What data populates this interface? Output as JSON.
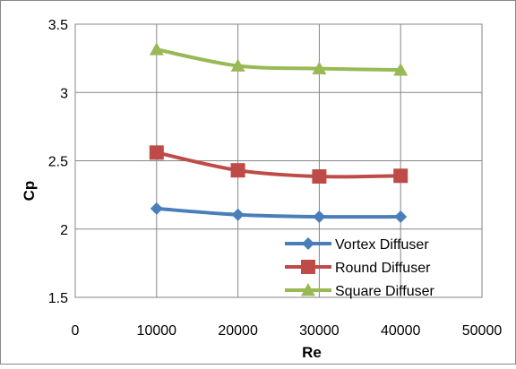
{
  "chart_data": {
    "type": "line",
    "xlabel": "Re",
    "ylabel": "Cp",
    "xlim": [
      0,
      50000
    ],
    "ylim": [
      1.5,
      3.5
    ],
    "x_ticks": [
      0,
      10000,
      20000,
      30000,
      40000,
      50000
    ],
    "y_ticks": [
      1.5,
      2,
      2.5,
      3,
      3.5
    ],
    "grid": true,
    "legend_position": "bottom-right",
    "x": [
      10000,
      20000,
      30000,
      40000
    ],
    "series": [
      {
        "name": "Vortex Diffuser",
        "values": [
          2.15,
          2.105,
          2.09,
          2.09
        ],
        "color": "#4A7EBB",
        "marker": "diamond"
      },
      {
        "name": "Round Diffuser",
        "values": [
          2.56,
          2.43,
          2.385,
          2.39
        ],
        "color": "#BE4B48",
        "marker": "square"
      },
      {
        "name": "Square Diffuser",
        "values": [
          3.315,
          3.195,
          3.175,
          3.165
        ],
        "color": "#98B954",
        "marker": "triangle"
      }
    ]
  }
}
